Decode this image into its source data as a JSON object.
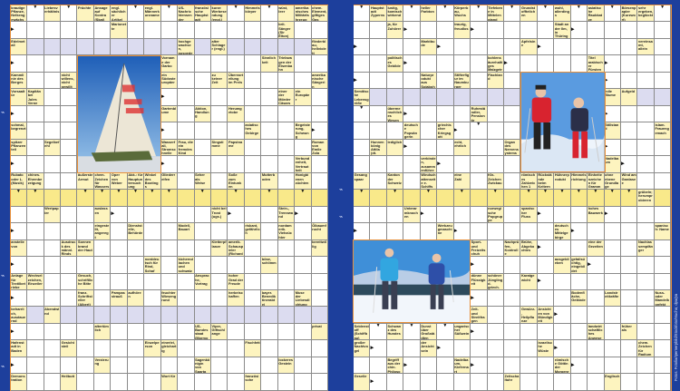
{
  "colors": {
    "background": "#1d3f9c",
    "grid_border": "#e8903a",
    "clue_cell": "#fdf4bf",
    "solution_row": "#f9e98a",
    "shaded_row": "#dcdcf0"
  },
  "credit": "Fotos: Fotolia/Ipernerpbild/Stockfoto/Mucha; dpa/pa",
  "photos": {
    "left": "iceboat-sail",
    "right_top": "two-skiers",
    "right_bottom": "snowshoe-hikers"
  },
  "pages": [
    {
      "rows": [
        [
          "krautige Pflanze, Nelkengewächs",
          "arrow-down",
          "Liebesverhältnis",
          "arrow-down",
          "Früchte",
          "Ansage auf Kontra (Skat)",
          "engl. sächlicher Artikel",
          "arrow-down",
          "engl. Männerkurzname",
          "arrow-down",
          "US-Nachrichtensender (Abk.)",
          "französische Hauptstadt",
          "kurze Werbesendung (engl.)",
          "arrow-down",
          "Himmelskörper",
          "arrow-down",
          "wüst, leer",
          "amerikanisches Militärfahrzeug",
          "chem. Element, giftiges Gas"
        ],
        [
          "arrow-right",
          "",
          "",
          "",
          "",
          "",
          "Marionette",
          "",
          "",
          "",
          "",
          "",
          "",
          "",
          "",
          "",
          "brit. Sänger (Sir Elton)",
          "",
          ""
        ],
        [
          "Edelmetall",
          "",
          "",
          "",
          "",
          "",
          "",
          "",
          "",
          "",
          "hochgewachsen, ausgedehnt",
          "",
          "alter Schlager (engl.)",
          "",
          "",
          "",
          "",
          "",
          "fliederblau, hellviolett"
        ],
        [
          "arrow-right",
          "",
          "",
          "",
          "",
          "",
          "",
          "",
          "",
          "Vorname der Garbo",
          "",
          "",
          "",
          "",
          "",
          "Sinnlichkeit",
          "Triebwagen der Eisenbahn",
          "",
          ""
        ],
        [
          "Kammlinie des Berges",
          "",
          "",
          "nicht willens, nicht gewillt",
          "",
          "",
          "",
          "",
          "",
          "ein Südosteuropäer",
          "",
          "",
          "zu keiner Zeit",
          "Übervorteilung im Preis",
          "",
          "",
          "",
          "",
          "amerikanische Sängerin (Diana)"
        ],
        [
          "Vorsaaltür",
          "Kapitän bei Jules Verne",
          "",
          "",
          "",
          "",
          "",
          "",
          "",
          "arrow-right",
          "",
          "",
          "",
          "",
          "",
          "",
          "einer der Mörder Cäsars",
          "ein Europäer",
          ""
        ],
        [
          "arrow-right",
          "",
          "",
          "",
          "",
          "",
          "",
          "",
          "",
          "Gartenblume",
          "",
          "Aktion, Handlung",
          "",
          "Herumgetobe",
          "",
          "",
          "",
          "",
          ""
        ],
        [
          "schmal, begrenzt",
          "",
          "",
          "",
          "",
          "",
          "",
          "",
          "",
          "arrow-right",
          "",
          "",
          "",
          "",
          "asiatisches Gebirge",
          "",
          "",
          "Begeisterung, Schwung",
          "arrow-right"
        ],
        [
          "spitzer Pflanzenteil",
          "",
          "Segelbefehl",
          "",
          "",
          "",
          "",
          "",
          "",
          "Wasserfall, Stromschnelle",
          "Frau, die ein fremdes Kind stillt",
          "",
          "Singstimme",
          "Papstname",
          "",
          "",
          "",
          "",
          "Roman von Emile Zola"
        ],
        [
          "arrow-right",
          "",
          "",
          "",
          "",
          "",
          "",
          "",
          "",
          "arrow-right",
          "",
          "",
          "",
          "",
          "",
          "",
          "",
          "Verbundenheit, Vertrautheit",
          ""
        ],
        [
          "Rubato oder L. (Musik)",
          "chines. Ehrenbezeigung",
          "",
          "",
          "äußerste Armut",
          "chem. Zeichen für Wasserstoff",
          "Oper von Weber",
          "Abk.: für Hauptuntersuchung",
          "Winkel des Bootings",
          "Gliederreifen",
          "",
          "Seher als Weise",
          "",
          "Soße zum Eintunken",
          "",
          "Mutterboden",
          "",
          "Honigbienen züchten",
          ""
        ],
        [
          "arrow-down",
          "arrow-down",
          "",
          "",
          "arrow-down",
          "arrow-down",
          "arrow-down",
          "arrow-down",
          "arrow-down",
          "arrow-down",
          "",
          "arrow-down",
          "",
          "arrow-down",
          "",
          "arrow-down",
          "",
          "arrow-down",
          ""
        ],
        [
          "",
          "",
          "Wertpapier",
          "",
          "",
          "auslassen",
          "arrow-right",
          "",
          "",
          "",
          "",
          "",
          "nicht bei Trost (ugs.)",
          "arrow-right",
          "",
          "",
          "Stein-, Trennwand",
          "arrow-right",
          ""
        ],
        [
          "arrow-right",
          "",
          "",
          "",
          "",
          "eingestellt, angeregt",
          "",
          "Dienststelle, Behörde",
          "",
          "",
          "Modell, Bauart",
          "",
          "",
          "",
          "riskant, gefährlich",
          "",
          "nordamerik. Viehzüchter",
          "",
          "Ölbaumfrucht"
        ],
        [
          "anstelle von",
          "",
          "",
          "Ausdruck des männl. Rinds",
          "Sonnenbrand der Haut",
          "",
          "",
          "",
          "",
          "",
          "",
          "",
          "Kletterpflanze",
          "amerik. Schauspieler (Richard)",
          "",
          "",
          "",
          "",
          "bereitwillig"
        ],
        [
          "arrow-right",
          "",
          "",
          "",
          "",
          "",
          "",
          "",
          "norddeutsch für Rind, Schaf",
          "",
          "kichernd lachen und schwatzen",
          "",
          "",
          "",
          "",
          "böse, schlimm",
          "",
          "",
          ""
        ],
        [
          "Anlage für Textilbetriebe",
          "Wechselzeichen, Einzeiler",
          "",
          "",
          "Gesuch, schriftliche Bitte",
          "",
          "",
          "",
          "",
          "",
          "",
          "Ansprache, Vortrag",
          "",
          "hoher Grad der Freude",
          "",
          "",
          "",
          "",
          ""
        ],
        [
          "arrow-right",
          "",
          "",
          "",
          "franz. Schriftsteller (Albert)",
          "",
          "Pampasstrauß",
          "aufhören",
          "",
          "feuchter Wiesengrund",
          "",
          "",
          "",
          "herbeischaffen",
          "",
          "bayer. Benediktinerabtei",
          "",
          "Muse der Liebesdichtung",
          ""
        ],
        [
          "beharrlich, ausdauernd",
          "",
          "Abendwind",
          "",
          "",
          "",
          "",
          "",
          "",
          "",
          "",
          "",
          "",
          "",
          "",
          "",
          "",
          "",
          ""
        ],
        [
          "arrow-right",
          "",
          "",
          "",
          "",
          "altertümlich",
          "",
          "",
          "",
          "",
          "",
          "US-Bundesstaat (Mormonenstaat)",
          "Viper, Giftschlange",
          "",
          "",
          "",
          "",
          "",
          "privat"
        ],
        [
          "Hafenstadt in Baden",
          "",
          "",
          "Gesichtsteil",
          "",
          "",
          "",
          "",
          "Einzelperson",
          "einerlei, gleichartig",
          "",
          "",
          "",
          "",
          "Fischfett",
          "",
          "",
          "",
          ""
        ],
        [
          "arrow-right",
          "",
          "",
          "",
          "",
          "Verzierung",
          "",
          "",
          "",
          "",
          "",
          "Sagenkönigin von Sparta",
          "",
          "",
          "",
          "",
          "lockeres Gestein",
          "",
          ""
        ],
        [
          "Demonstration",
          "",
          "",
          "Heilbutt",
          "",
          "",
          "",
          "",
          "",
          "Wort für",
          "",
          "",
          "",
          "",
          "französische",
          "",
          "",
          "",
          ""
        ]
      ]
    },
    {
      "rows": [
        [
          "arrow-down",
          "Hauptstadt Zyperns",
          "lustig, komisch wirkend",
          "arrow-down",
          "heller Farbton",
          "arrow-down",
          "Körperbau, Wuchs",
          "arrow-down",
          "Tiefebene in Mittelengland",
          "arrow-down",
          "Grundstoffteilchen",
          "arrow-down",
          "wohl, allerdings",
          "arrow-down",
          "asiatische Raubkatze",
          "arrow-down",
          "Börsenpapier (Kurzwort)",
          "sehr ergeben, beglückt",
          "arrow-down"
        ],
        [
          "",
          "",
          "ja, für Zuhörer",
          "arrow-right",
          "",
          "",
          "traurig, freudlos",
          "arrow-right",
          "",
          "",
          "",
          "",
          "Stadt an der Ilm, in Thüringen",
          "arrow-right",
          "",
          "",
          "",
          "",
          ""
        ],
        [
          "arrow-right",
          "",
          "",
          "",
          "Marktbude",
          "arrow-right",
          "",
          "",
          "",
          "",
          "Apfelsine",
          "arrow-right",
          "",
          "",
          "",
          "",
          "",
          "vereinsamt, allein",
          ""
        ],
        [
          "",
          "",
          "politisches Gebilde",
          "arrow-right",
          "",
          "",
          "",
          "",
          "kohlensäurehaltiges Malzgetränk",
          "arrow-right",
          "",
          "",
          "",
          "",
          "Titel arabischer Fürsten",
          "arrow-right",
          "",
          "",
          ""
        ],
        [
          "arrow-right",
          "",
          "",
          "",
          "Naturprodukt aus Sojabohnen",
          "",
          "Stifterfigur im Naumburger Dom",
          "",
          "Flachland",
          "",
          "",
          "",
          "",
          "",
          "",
          "arrow-right",
          "",
          "",
          ""
        ],
        [
          "Semitische Lebensgröße",
          "",
          "",
          "",
          "",
          "",
          "",
          "",
          "",
          "",
          "",
          "",
          "",
          "",
          "",
          "edle Blume",
          "Aufgeld",
          "",
          ""
        ],
        [
          "arrow-down",
          "",
          "übermenschliches Wesen",
          "arrow-right",
          "",
          "",
          "",
          "Ruheständler, Pensionär",
          "",
          "",
          "",
          "",
          "",
          "",
          "",
          "arrow-right",
          "",
          "",
          ""
        ],
        [
          "",
          "",
          "",
          "deutsche Popsängerin",
          "",
          "griechischer Kriegsgott",
          "arrow-right",
          "arrow-down",
          "",
          "",
          "",
          "",
          "",
          "",
          "",
          "Stillstand",
          "",
          "",
          "islam. Frauengemach"
        ],
        [
          "",
          "Hunnenkönig Attila (dt. Name)",
          "lediglich",
          "arrow-right",
          "",
          "",
          "echt, ehrlich",
          "",
          "",
          "Organ des Nervensystems",
          "",
          "",
          "",
          "",
          "",
          "arrow-right",
          "",
          "",
          ""
        ],
        [
          "",
          "",
          "",
          "",
          "verbinden, zusammenführen",
          "arrow-right",
          "",
          "",
          "",
          "",
          "",
          "",
          "",
          "",
          "",
          "Nadelbaum",
          "arrow-right",
          "",
          ""
        ],
        [
          "Gesangspaar",
          "",
          "Kanton der Schweiz",
          "",
          "Windschattenseite e. Schiffs",
          "",
          "eine Zahl",
          "",
          "Kfz-Zeichen Zwickau",
          "",
          "römisches Zahlzeichen 1",
          "Rückstände beim Keltern",
          "Hühnerprodukt",
          "Himmelsrichtung",
          "Einheitenzeichen für Gramm",
          "ohne ebene Grundlage",
          "Wind am Gardasee",
          "",
          ""
        ],
        [
          "arrow-down",
          "",
          "arrow-down",
          "",
          "arrow-down",
          "",
          "arrow-down",
          "",
          "arrow-down",
          "",
          "arrow-down",
          "arrow-down",
          "arrow-down",
          "arrow-down",
          "arrow-down",
          "arrow-down",
          "arrow-down",
          "grübeln; herumprobieren",
          ""
        ],
        [
          "",
          "",
          "",
          "Unterarmknochen",
          "arrow-right",
          "",
          "",
          "",
          "norwegische Popgruppe",
          "",
          "spanischer Fluss",
          "arrow-right",
          "",
          "",
          "hohes Bauwerk",
          "arrow-right",
          "",
          "",
          ""
        ],
        [
          "arrow-right",
          "",
          "",
          "",
          "",
          "Werkzeugmaschine",
          "arrow-right",
          "",
          "",
          "",
          "",
          "",
          "deutsches Mittelgebirge",
          "arrow-right",
          "",
          "",
          "",
          "",
          "spanisch: Name"
        ],
        [
          "",
          "",
          "",
          "",
          "",
          "",
          "",
          "Sport- und Freizeitschuh",
          "",
          "Nachprüfen, Kontrolle",
          "Brühe, Abgekochtes",
          "arrow-right",
          "",
          "",
          "eine der Gezeiten",
          "",
          "",
          "Nachlassempfänger",
          ""
        ],
        [
          "",
          "",
          "",
          "",
          "",
          "",
          "",
          "arrow-right",
          "",
          "",
          "",
          "",
          "ausgeblieben",
          "gefallsüchtig, eingebildet",
          "arrow-right",
          "",
          "",
          "",
          ""
        ],
        [
          "",
          "",
          "",
          "",
          "",
          "",
          "",
          "dünne Flüssigkeit",
          "schöner Jüngling d. griech. Sage",
          "",
          "Karatgewicht",
          "arrow-right",
          "",
          "",
          "",
          "",
          "",
          "",
          ""
        ],
        [
          "",
          "",
          "",
          "",
          "",
          "",
          "",
          "arrow-right",
          "",
          "",
          "",
          "",
          "",
          "Bodenfläche, Gelände",
          "",
          "Landstreitkräfte",
          "",
          "",
          "Nuss- oder Mandelkonfekt"
        ],
        [
          "",
          "",
          "",
          "",
          "",
          "",
          "",
          "Zeit- und Streitfragen",
          "",
          "",
          "Gewürz-, Heilpflanze",
          "Ansichten von Mündigkeit",
          "arrow-right",
          "",
          "",
          "",
          "",
          "",
          ""
        ],
        [
          "Seidenstoff (Schiffbau)",
          "arrow-down",
          "Schwanz des Hundes",
          "arrow-down",
          "Dunst über Großstädten",
          "arrow-down",
          "ungarischer Süßwein",
          "arrow-right",
          "",
          "",
          "",
          "",
          "",
          "",
          "landwirtschaftliches Anwesen",
          "",
          "früher als",
          "",
          ""
        ],
        [
          "großer Nachtvogel",
          "arrow-right",
          "",
          "",
          "der Ansicht sein",
          "arrow-right",
          "",
          "",
          "",
          "",
          "",
          "israelische Wüste",
          "arrow-right",
          "",
          "",
          "",
          "",
          "chem. Zeichen für Radium",
          ""
        ],
        [
          "",
          "",
          "Begriff aus der chin. Philosophie",
          "arrow-right",
          "",
          "",
          "Nadelbaum, Kiefernart",
          "arrow-right",
          "",
          "",
          "",
          "",
          "römische Göttin der Morgenröte",
          "arrow-right",
          "",
          "",
          "",
          "",
          ""
        ],
        [
          "Geselle",
          "arrow-right",
          "",
          "",
          "",
          "",
          "",
          "",
          "",
          "Zeitschaltuhr",
          "",
          "",
          "",
          "",
          "",
          "Englisch",
          "",
          "",
          ""
        ]
      ]
    }
  ]
}
